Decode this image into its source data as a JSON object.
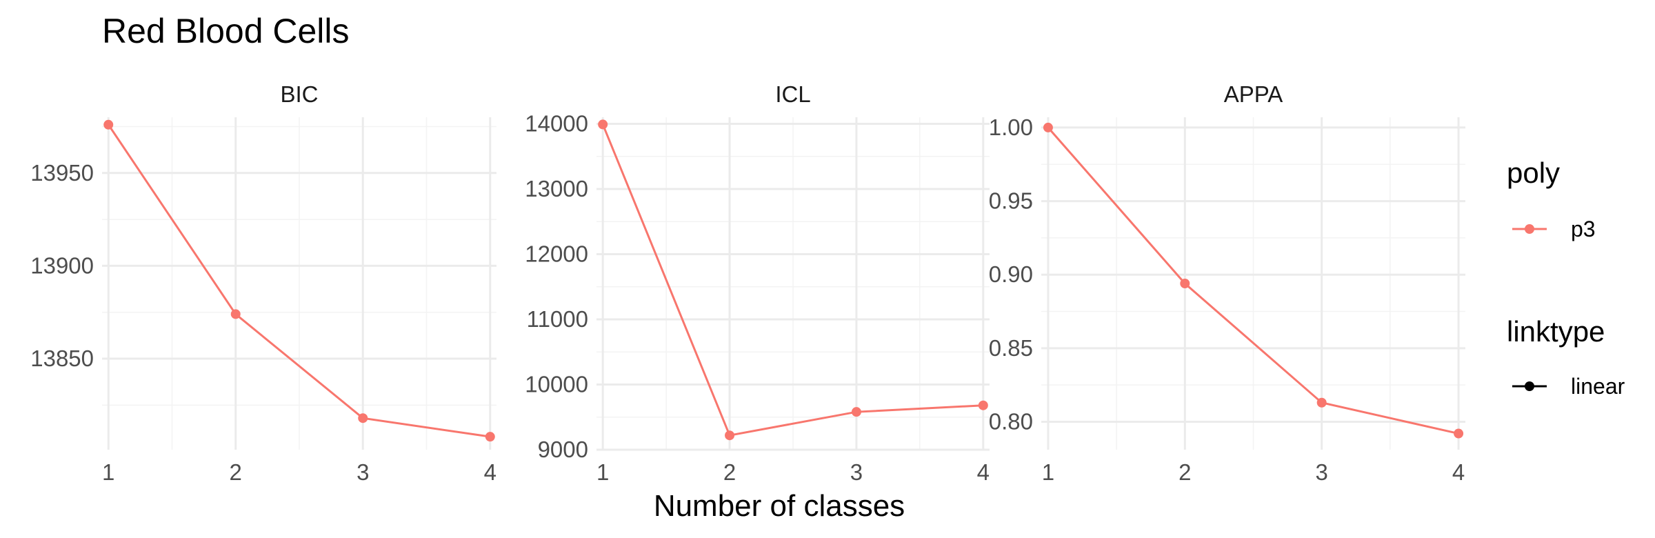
{
  "chart_data": {
    "type": "line",
    "title": "Red Blood Cells",
    "xlabel": "Number of classes",
    "ylabel": "",
    "series_color": "#F8766D",
    "legend": {
      "placement": "right",
      "color_title": "poly",
      "color_entries": [
        {
          "label": "p3",
          "color": "#F8766D"
        }
      ],
      "linetype_title": "linktype",
      "linetype_entries": [
        {
          "label": "linear",
          "color": "#000000"
        }
      ]
    },
    "facets": [
      {
        "name": "BIC",
        "x": [
          1,
          2,
          3,
          4
        ],
        "y": [
          13976,
          13874,
          13818,
          13808
        ],
        "xlim": [
          0.95,
          4.05
        ],
        "ylim": [
          13801,
          13980
        ],
        "xticks": [
          1,
          2,
          3,
          4
        ],
        "xtick_labels": [
          "1",
          "2",
          "3",
          "4"
        ],
        "yticks": [
          13850,
          13900,
          13950
        ],
        "ytick_labels": [
          "13850",
          "13900",
          "13950"
        ]
      },
      {
        "name": "ICL",
        "x": [
          1,
          2,
          3,
          4
        ],
        "y": [
          13990,
          9220,
          9580,
          9680
        ],
        "xlim": [
          0.95,
          4.05
        ],
        "ylim": [
          9000,
          14100
        ],
        "xticks": [
          1,
          2,
          3,
          4
        ],
        "xtick_labels": [
          "1",
          "2",
          "3",
          "4"
        ],
        "yticks": [
          9000,
          10000,
          11000,
          12000,
          13000,
          14000
        ],
        "ytick_labels": [
          "9000",
          "10000",
          "11000",
          "12000",
          "13000",
          "14000"
        ]
      },
      {
        "name": "APPA",
        "x": [
          1,
          2,
          3,
          4
        ],
        "y": [
          1.0,
          0.894,
          0.813,
          0.792
        ],
        "xlim": [
          0.95,
          4.05
        ],
        "ylim": [
          0.781,
          1.007
        ],
        "xticks": [
          1,
          2,
          3,
          4
        ],
        "xtick_labels": [
          "1",
          "2",
          "3",
          "4"
        ],
        "yticks": [
          0.8,
          0.85,
          0.9,
          0.95,
          1.0
        ],
        "ytick_labels": [
          "0.80",
          "0.85",
          "0.90",
          "0.95",
          "1.00"
        ]
      }
    ]
  }
}
